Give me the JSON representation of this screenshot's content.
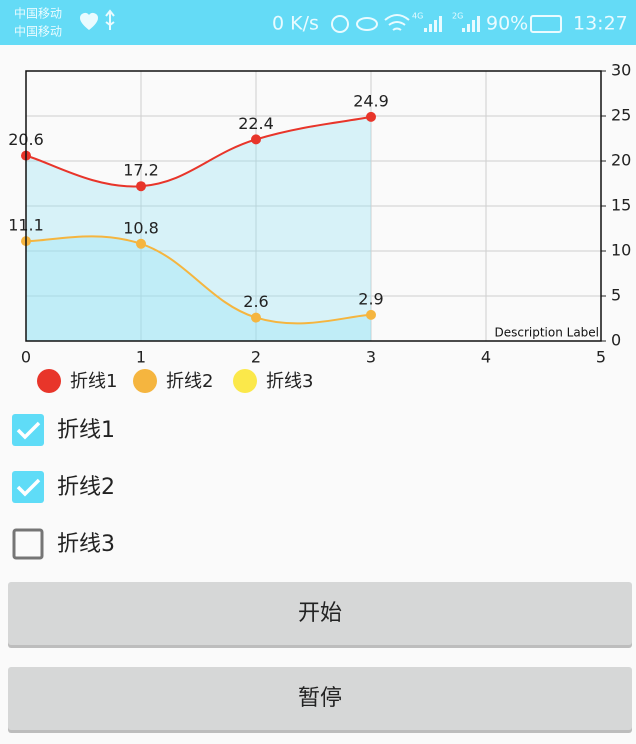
{
  "status_bar": {
    "carrier1": "中国移动",
    "carrier2": "中国移动",
    "speed": "0 K/s",
    "net1": "4G",
    "net2": "2G",
    "battery": "90%",
    "time": "13:27"
  },
  "chart_data": {
    "type": "line",
    "description": "Description Label",
    "x": [
      0,
      1,
      2,
      3
    ],
    "series": [
      {
        "name": "折线1",
        "color": "#e8352a",
        "values": [
          20.6,
          17.2,
          22.4,
          24.9
        ]
      },
      {
        "name": "折线2",
        "color": "#f5b53f",
        "values": [
          11.1,
          10.8,
          2.6,
          2.9
        ]
      },
      {
        "name": "折线3",
        "color": "#fbe84a"
      }
    ],
    "xlim": [
      0,
      5
    ],
    "xticks": [
      0,
      1,
      2,
      3,
      4,
      5
    ],
    "y2lim": [
      0,
      30
    ],
    "y2ticks": [
      0,
      5,
      10,
      15,
      20,
      25,
      30
    ],
    "grid": true,
    "fill_color": "#8fe2f6",
    "legend": "bottom-left"
  },
  "checkboxes": [
    {
      "label": "折线1",
      "checked": true
    },
    {
      "label": "折线2",
      "checked": true
    },
    {
      "label": "折线3",
      "checked": false
    }
  ],
  "buttons": [
    "开始",
    "暂停"
  ]
}
